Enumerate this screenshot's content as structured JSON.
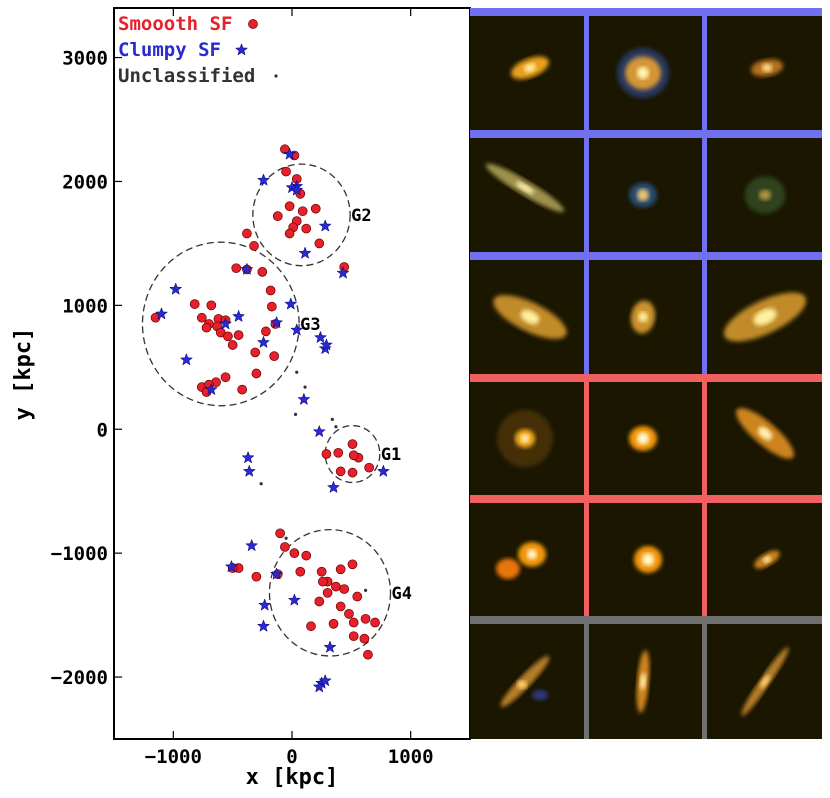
{
  "chart_data": {
    "type": "scatter",
    "xlabel": "x [kpc]",
    "ylabel": "y [kpc]",
    "xlim": [
      -1500,
      1500
    ],
    "ylim": [
      -2500,
      3400
    ],
    "xticks": [
      -1000,
      0,
      1000
    ],
    "yticks": [
      -2000,
      -1000,
      0,
      1000,
      2000,
      3000
    ],
    "grid": false,
    "legend_position": "top-left",
    "legend": [
      {
        "label": "Smoooth SF",
        "series": "smooth",
        "color": "#e8202a",
        "marker": "circle"
      },
      {
        "label": "Clumpy SF",
        "series": "clumpy",
        "color": "#2a2ad0",
        "marker": "star"
      },
      {
        "label": "Unclassified",
        "series": "unclassified",
        "color": "#333333",
        "marker": "dot"
      }
    ],
    "groups": [
      {
        "label": "G1",
        "cx": 510,
        "cy": -200,
        "r": 230
      },
      {
        "label": "G2",
        "cx": 80,
        "cy": 1730,
        "r": 410
      },
      {
        "label": "G3",
        "cx": -600,
        "cy": 850,
        "r": 660
      },
      {
        "label": "G4",
        "cx": 320,
        "cy": -1320,
        "r": 510
      }
    ],
    "series": [
      {
        "name": "Smoooth SF",
        "key": "smooth",
        "color": "#e8202a",
        "marker": "circle",
        "points": [
          [
            -60,
            2260
          ],
          [
            20,
            2210
          ],
          [
            -50,
            2080
          ],
          [
            40,
            2020
          ],
          [
            70,
            1900
          ],
          [
            -20,
            1800
          ],
          [
            90,
            1760
          ],
          [
            -120,
            1720
          ],
          [
            40,
            1680
          ],
          [
            10,
            1630
          ],
          [
            120,
            1620
          ],
          [
            -20,
            1580
          ],
          [
            200,
            1780
          ],
          [
            230,
            1500
          ],
          [
            -380,
            1580
          ],
          [
            -320,
            1480
          ],
          [
            -470,
            1300
          ],
          [
            -380,
            1290
          ],
          [
            -250,
            1270
          ],
          [
            440,
            1310
          ],
          [
            -820,
            1010
          ],
          [
            -680,
            1000
          ],
          [
            -760,
            900
          ],
          [
            -700,
            850
          ],
          [
            -620,
            890
          ],
          [
            -560,
            880
          ],
          [
            -630,
            830
          ],
          [
            -720,
            820
          ],
          [
            -600,
            780
          ],
          [
            -540,
            750
          ],
          [
            -450,
            760
          ],
          [
            -500,
            680
          ],
          [
            -310,
            620
          ],
          [
            -300,
            450
          ],
          [
            -560,
            420
          ],
          [
            -640,
            380
          ],
          [
            -760,
            340
          ],
          [
            -700,
            360
          ],
          [
            -720,
            300
          ],
          [
            -420,
            320
          ],
          [
            -180,
            1120
          ],
          [
            -220,
            790
          ],
          [
            -140,
            850
          ],
          [
            -150,
            590
          ],
          [
            -1150,
            900
          ],
          [
            -170,
            990
          ],
          [
            510,
            -120
          ],
          [
            390,
            -190
          ],
          [
            290,
            -200
          ],
          [
            560,
            -230
          ],
          [
            520,
            -210
          ],
          [
            410,
            -340
          ],
          [
            510,
            -350
          ],
          [
            650,
            -310
          ],
          [
            -100,
            -840
          ],
          [
            -60,
            -950
          ],
          [
            20,
            -1000
          ],
          [
            120,
            -1020
          ],
          [
            70,
            -1150
          ],
          [
            250,
            -1150
          ],
          [
            300,
            -1230
          ],
          [
            260,
            -1230
          ],
          [
            410,
            -1130
          ],
          [
            510,
            -1090
          ],
          [
            370,
            -1270
          ],
          [
            440,
            -1290
          ],
          [
            300,
            -1320
          ],
          [
            230,
            -1390
          ],
          [
            410,
            -1430
          ],
          [
            550,
            -1350
          ],
          [
            480,
            -1490
          ],
          [
            620,
            -1530
          ],
          [
            350,
            -1570
          ],
          [
            160,
            -1590
          ],
          [
            520,
            -1560
          ],
          [
            700,
            -1560
          ],
          [
            520,
            -1670
          ],
          [
            610,
            -1690
          ],
          [
            640,
            -1820
          ],
          [
            -120,
            -1170
          ],
          [
            -450,
            -1120
          ],
          [
            -500,
            -1120
          ],
          [
            -300,
            -1190
          ]
        ]
      },
      {
        "name": "Clumpy SF",
        "key": "clumpy",
        "color": "#2a2ad0",
        "marker": "star",
        "points": [
          [
            -20,
            2220
          ],
          [
            40,
            1960
          ],
          [
            0,
            1950
          ],
          [
            40,
            1930
          ],
          [
            -240,
            2010
          ],
          [
            110,
            1420
          ],
          [
            280,
            1640
          ],
          [
            430,
            1260
          ],
          [
            -450,
            910
          ],
          [
            -560,
            850
          ],
          [
            -380,
            1290
          ],
          [
            -240,
            700
          ],
          [
            -130,
            860
          ],
          [
            -10,
            1010
          ],
          [
            -1100,
            930
          ],
          [
            -980,
            1130
          ],
          [
            -890,
            560
          ],
          [
            -680,
            320
          ],
          [
            280,
            650
          ],
          [
            290,
            680
          ],
          [
            240,
            740
          ],
          [
            100,
            240
          ],
          [
            40,
            800
          ],
          [
            230,
            -20
          ],
          [
            -370,
            -230
          ],
          [
            -360,
            -340
          ],
          [
            350,
            -470
          ],
          [
            770,
            -340
          ],
          [
            -340,
            -940
          ],
          [
            -130,
            -1170
          ],
          [
            -510,
            -1110
          ],
          [
            -230,
            -1420
          ],
          [
            20,
            -1380
          ],
          [
            320,
            -1760
          ],
          [
            -240,
            -1590
          ],
          [
            250,
            -2050
          ],
          [
            280,
            -2030
          ],
          [
            230,
            -2080
          ]
        ]
      },
      {
        "name": "Unclassified",
        "key": "unclassified",
        "color": "#333333",
        "marker": "dot",
        "points": [
          [
            110,
            340
          ],
          [
            30,
            120
          ],
          [
            40,
            460
          ],
          [
            340,
            80
          ],
          [
            -260,
            -440
          ],
          [
            -50,
            -880
          ],
          [
            620,
            -1300
          ],
          [
            370,
            20
          ]
        ]
      }
    ]
  },
  "thumbnails": {
    "rows": [
      {
        "group": "clumpy",
        "bar_color": "#7070f0",
        "cells": [
          "spiral-compact",
          "spiral-ring",
          "spiral-small"
        ]
      },
      {
        "group": "clumpy",
        "bar_color": "#7070f0",
        "cells": [
          "edge-on-disk",
          "clumpy-ring",
          "diffuse-knots"
        ]
      },
      {
        "group": "clumpy",
        "bar_color": "#7070f0",
        "cells": [
          "inclined-spiral",
          "compact-knot",
          "inclined-spiral-large"
        ]
      },
      {
        "group": "smooth",
        "bar_color": "#f06060",
        "cells": [
          "elliptical-halo",
          "elliptical-bright",
          "edge-on-lens"
        ]
      },
      {
        "group": "smooth",
        "bar_color": "#f06060",
        "cells": [
          "double-nucleus",
          "elliptical-round",
          "small-lens"
        ]
      },
      {
        "group": "unclassified",
        "bar_color": "#707070",
        "cells": [
          "arc-edge-on",
          "vertical-streak",
          "diagonal-streak"
        ]
      }
    ]
  }
}
